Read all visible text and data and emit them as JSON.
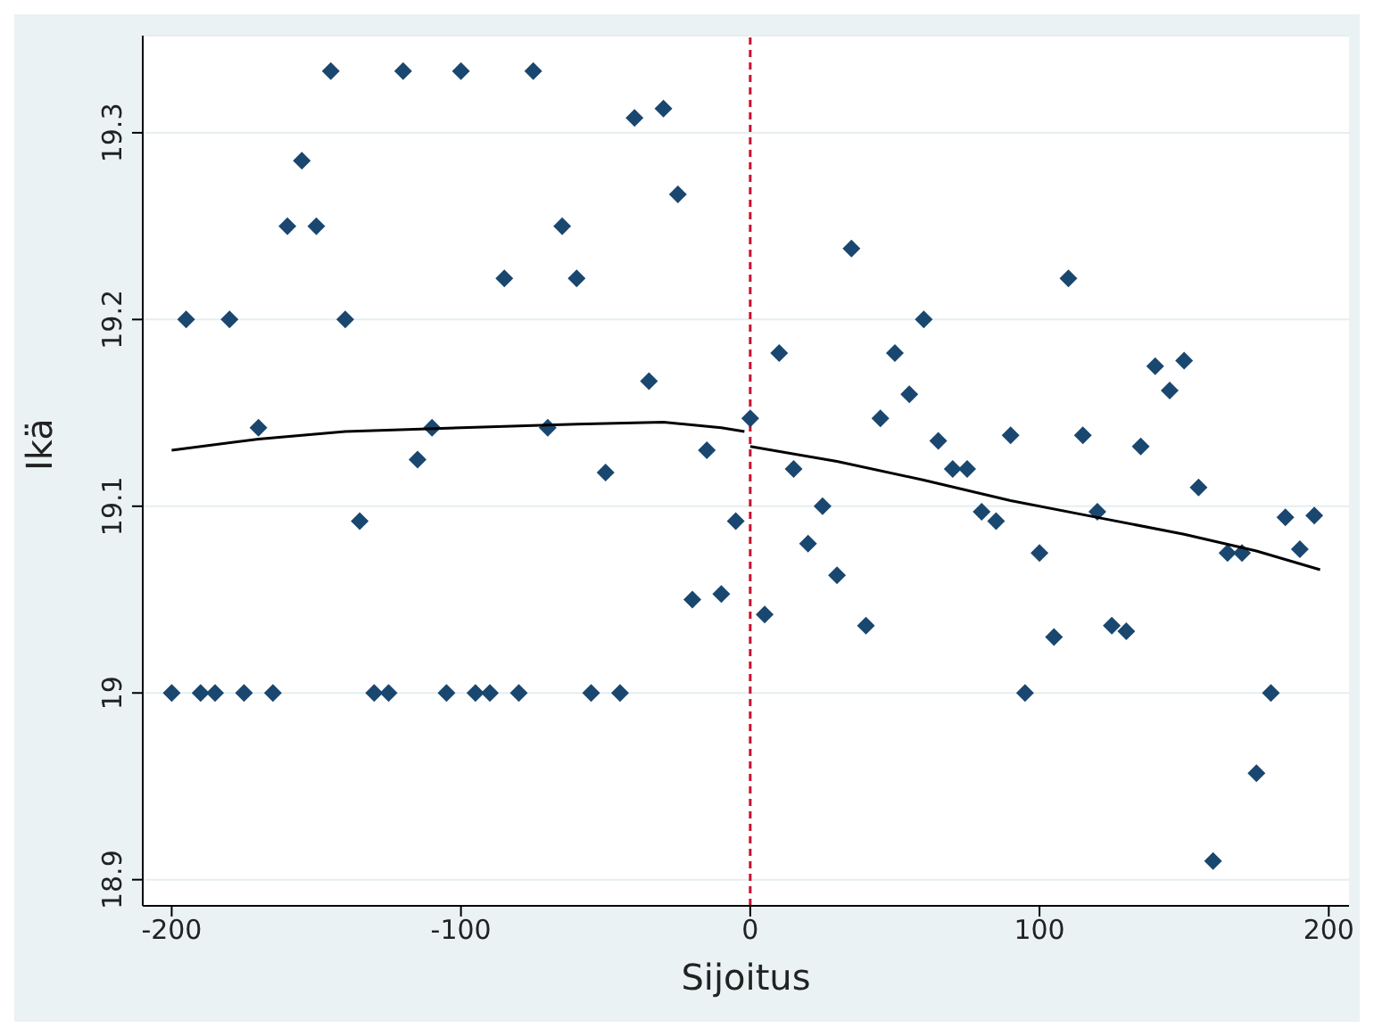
{
  "chart_data": {
    "type": "scatter",
    "xlabel": "Sijoitus",
    "ylabel": "Ikä",
    "xlim": [
      -210,
      207
    ],
    "ylim": [
      18.886,
      19.352
    ],
    "xticks": [
      -200,
      -100,
      0,
      100,
      200
    ],
    "yticks": [
      18.9,
      19,
      19.1,
      19.2,
      19.3
    ],
    "grid": "y",
    "marker": "diamond",
    "ref_lines": [
      {
        "axis": "x",
        "value": 0,
        "color": "#c8102e",
        "line_style": "dashed"
      }
    ],
    "series": [
      {
        "color": "#1a476f",
        "x": [
          -200,
          -195,
          -190,
          -185,
          -180,
          -175,
          -170,
          -165,
          -160,
          -155,
          -150,
          -145,
          -140,
          -135,
          -130,
          -125,
          -120,
          -115,
          -110,
          -105,
          -100,
          -95,
          -90,
          -85,
          -80,
          -75,
          -70,
          -65,
          -60,
          -55,
          -50,
          -45,
          -40,
          -35,
          -30,
          -25,
          -20,
          -15,
          -10,
          -5,
          0,
          5,
          10,
          15,
          20,
          25,
          30,
          35,
          40,
          45,
          50,
          55,
          60,
          65,
          70,
          75,
          80,
          85,
          90,
          95,
          100,
          105,
          110,
          115,
          120,
          125,
          130,
          135,
          140,
          145,
          150,
          155,
          160,
          165,
          170,
          175,
          180,
          185,
          190,
          195
        ],
        "values": [
          19.0,
          19.2,
          19.0,
          19.0,
          19.2,
          19.0,
          19.142,
          19.0,
          19.25,
          19.285,
          19.25,
          19.333,
          19.2,
          19.092,
          19.0,
          19.0,
          19.333,
          19.125,
          19.142,
          19.0,
          19.333,
          19.0,
          19.0,
          19.222,
          19.0,
          19.333,
          19.142,
          19.25,
          19.222,
          19.0,
          19.118,
          19.0,
          19.308,
          19.167,
          19.313,
          19.267,
          19.05,
          19.13,
          19.053,
          19.092,
          19.147,
          19.042,
          19.182,
          19.12,
          19.08,
          19.1,
          19.063,
          19.238,
          19.036,
          19.147,
          19.182,
          19.16,
          19.2,
          19.135,
          19.12,
          19.12,
          19.097,
          19.092,
          19.138,
          19.0,
          19.075,
          19.03,
          19.222,
          19.138,
          19.097,
          19.036,
          19.033,
          19.132,
          19.175,
          19.162,
          19.178,
          19.11,
          18.91,
          19.075,
          19.075,
          18.957,
          19.0,
          19.094,
          19.077,
          19.095
        ]
      },
      {
        "type": "line",
        "color": "#000000",
        "marker": "none",
        "x": [
          -200,
          -170,
          -140,
          -100,
          -60,
          -30,
          -10,
          -2
        ],
        "values": [
          19.13,
          19.136,
          19.14,
          19.142,
          19.144,
          19.145,
          19.142,
          19.14
        ]
      },
      {
        "type": "line",
        "color": "#000000",
        "marker": "none",
        "x": [
          0,
          30,
          60,
          90,
          120,
          150,
          175,
          197
        ],
        "values": [
          19.132,
          19.124,
          19.114,
          19.103,
          19.094,
          19.085,
          19.076,
          19.066
        ]
      }
    ]
  }
}
